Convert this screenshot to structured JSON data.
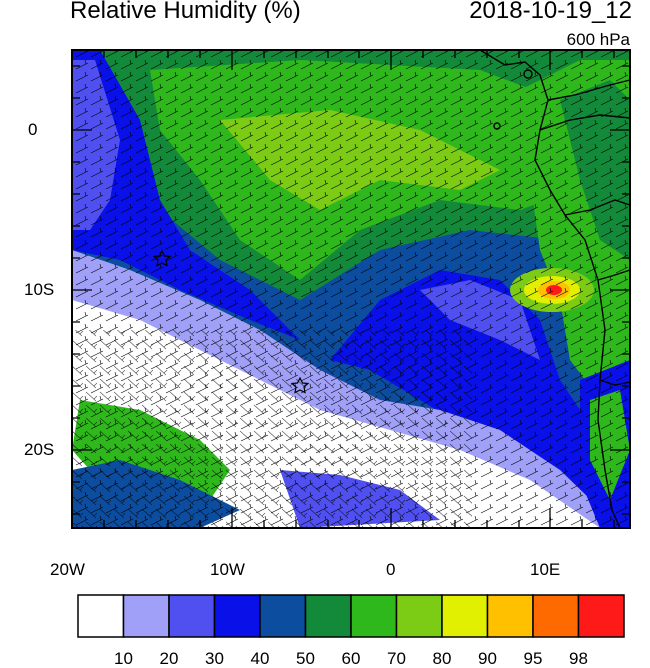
{
  "header": {
    "title": "Relative Humidity (%)",
    "datetime": "2018-10-19_12",
    "level": "600 hPa"
  },
  "axes": {
    "x_ticks": [
      "20W",
      "10W",
      "0",
      "10E"
    ],
    "y_ticks": [
      "0",
      "10S",
      "20S"
    ]
  },
  "colorbar": {
    "colors": [
      "#ffffff",
      "#a0a0f8",
      "#5050f0",
      "#0a10e8",
      "#0c4da0",
      "#138a3a",
      "#2eb81c",
      "#7ccc16",
      "#e0f000",
      "#ffc000",
      "#ff6a00",
      "#ff1a1a"
    ],
    "labels": [
      "10",
      "20",
      "30",
      "40",
      "50",
      "60",
      "70",
      "80",
      "90",
      "95",
      "98"
    ]
  },
  "markers": [
    {
      "name": "star",
      "lon": -14.3,
      "lat": -8.0
    },
    {
      "name": "star",
      "lon": -5.7,
      "lat": -16.0
    }
  ]
}
